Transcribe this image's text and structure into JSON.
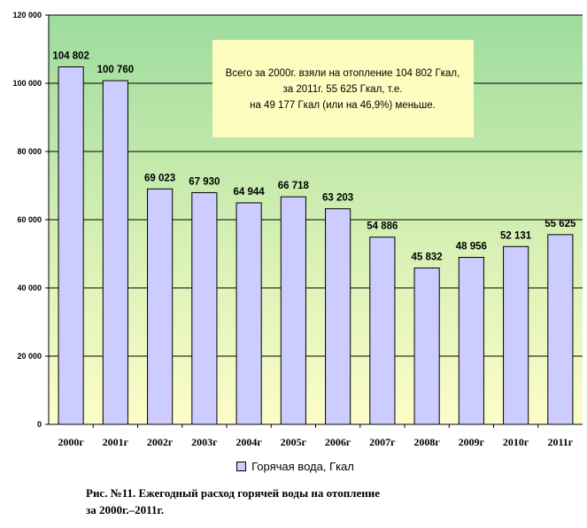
{
  "chart_data": {
    "type": "bar",
    "categories": [
      "2000г",
      "2001г",
      "2002г",
      "2003г",
      "2004г",
      "2005г",
      "2006г",
      "2007г",
      "2008г",
      "2009г",
      "2010г",
      "2011г"
    ],
    "series": [
      {
        "name": "Горячая вода, Гкал",
        "values": [
          104802,
          100760,
          69023,
          67930,
          64944,
          66718,
          63203,
          54886,
          45832,
          48956,
          52131,
          55625
        ]
      }
    ],
    "data_labels": [
      "104 802",
      "100 760",
      "69 023",
      "67 930",
      "64 944",
      "66 718",
      "63 203",
      "54 886",
      "45 832",
      "48 956",
      "52 131",
      "55 625"
    ],
    "y_ticks": [
      0,
      20000,
      40000,
      60000,
      80000,
      100000,
      120000
    ],
    "y_tick_labels": [
      "0",
      "20 000",
      "40 000",
      "60 000",
      "80 000",
      "100 000",
      "120 000"
    ],
    "ylim": [
      0,
      120000
    ],
    "grid": true,
    "legend_position": "bottom",
    "annotation": [
      "Всего за 2000г. взяли на отопление 104 802 Гкал,",
      "за 2011г.  55 625 Гкал, т.е.",
      "на 49 177 Гкал  (или на 46,9%) меньше."
    ],
    "colors": {
      "bar": "#ccccff",
      "bar_border": "#000000",
      "plot_top": "#9ddc9d",
      "plot_bottom": "#fdfdc8",
      "note_bg": "#fdfdc0",
      "grid": "#000000"
    }
  },
  "caption": {
    "line1": "Рис. №11. Ежегодный расход горячей воды на отопление",
    "line2": "за 2000г.–2011г."
  }
}
